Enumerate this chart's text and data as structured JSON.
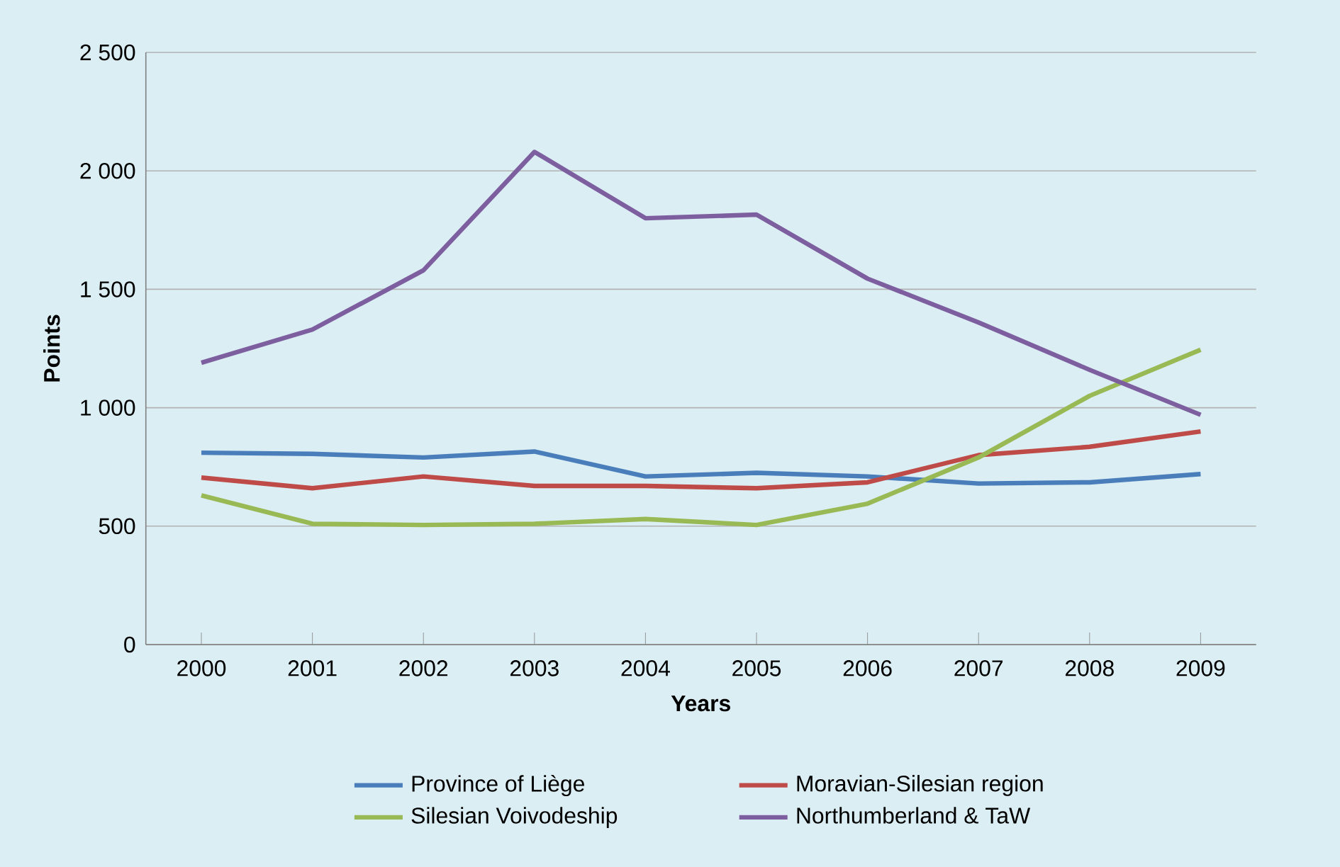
{
  "chart_data": {
    "type": "line",
    "xlabel": "Years",
    "ylabel": "Points",
    "categories": [
      "2000",
      "2001",
      "2002",
      "2003",
      "2004",
      "2005",
      "2006",
      "2007",
      "2008",
      "2009"
    ],
    "series": [
      {
        "name": "Province of Liège",
        "color": "#4a7ebb",
        "values": [
          810,
          805,
          790,
          815,
          710,
          725,
          710,
          680,
          685,
          720
        ]
      },
      {
        "name": "Moravian-Silesian region",
        "color": "#be4b48",
        "values": [
          705,
          660,
          710,
          670,
          670,
          660,
          685,
          800,
          835,
          900
        ]
      },
      {
        "name": "Silesian Voivodeship",
        "color": "#98b954",
        "values": [
          630,
          510,
          505,
          510,
          530,
          505,
          595,
          790,
          1050,
          1245
        ]
      },
      {
        "name": "Northumberland & TaW",
        "color": "#7d5fa0",
        "values": [
          1190,
          1330,
          1580,
          2080,
          1800,
          1815,
          1545,
          1360,
          1160,
          970
        ]
      }
    ],
    "ylim": [
      0,
      2500
    ],
    "yticks": [
      {
        "value": 0,
        "label": "0"
      },
      {
        "value": 500,
        "label": "500"
      },
      {
        "value": 1000,
        "label": "1 000"
      },
      {
        "value": 1500,
        "label": "1 500"
      },
      {
        "value": 2000,
        "label": "2 000"
      },
      {
        "value": 2500,
        "label": "2 500"
      }
    ],
    "grid": "y",
    "legend": "bottom",
    "marker": "none",
    "line_style": "solid"
  }
}
